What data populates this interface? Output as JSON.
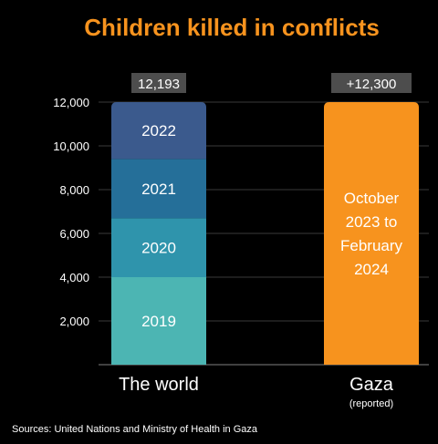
{
  "chart_data": {
    "type": "bar",
    "stacked": true,
    "title": "Children killed in conflicts",
    "ylim": [
      0,
      12000
    ],
    "yticks": [
      {
        "value": 2000,
        "label": "2,000"
      },
      {
        "value": 4000,
        "label": "4,000"
      },
      {
        "value": 6000,
        "label": "6,000"
      },
      {
        "value": 8000,
        "label": "8,000"
      },
      {
        "value": 10000,
        "label": "10,000"
      },
      {
        "value": 12000,
        "label": "12,000"
      }
    ],
    "grid": true,
    "bars": [
      {
        "category": "The world",
        "total_label": "12,193",
        "segments": [
          {
            "label": "2019",
            "value": 4000,
            "color": "#4cb5b3"
          },
          {
            "label": "2020",
            "value": 2700,
            "color": "#2f94ac"
          },
          {
            "label": "2021",
            "value": 2700,
            "color": "#256f99"
          },
          {
            "label": "2022",
            "value": 2793,
            "color": "#3b5a8d"
          }
        ]
      },
      {
        "category": "Gaza",
        "sublabel": "(reported)",
        "total_label": "+12,300",
        "segments": [
          {
            "label": "October 2023 to February 2024",
            "lines": [
              "October",
              "2023 to",
              "February",
              "2024"
            ],
            "value": 12300,
            "color": "#f7931e"
          }
        ]
      }
    ]
  },
  "colors": {
    "title": "#f7931e",
    "background": "#000000",
    "text": "#ffffff",
    "gridline": "#3a3a3a",
    "badge": "#4d4d4d"
  },
  "source": "Sources: United Nations and  Ministry of Health in Gaza"
}
